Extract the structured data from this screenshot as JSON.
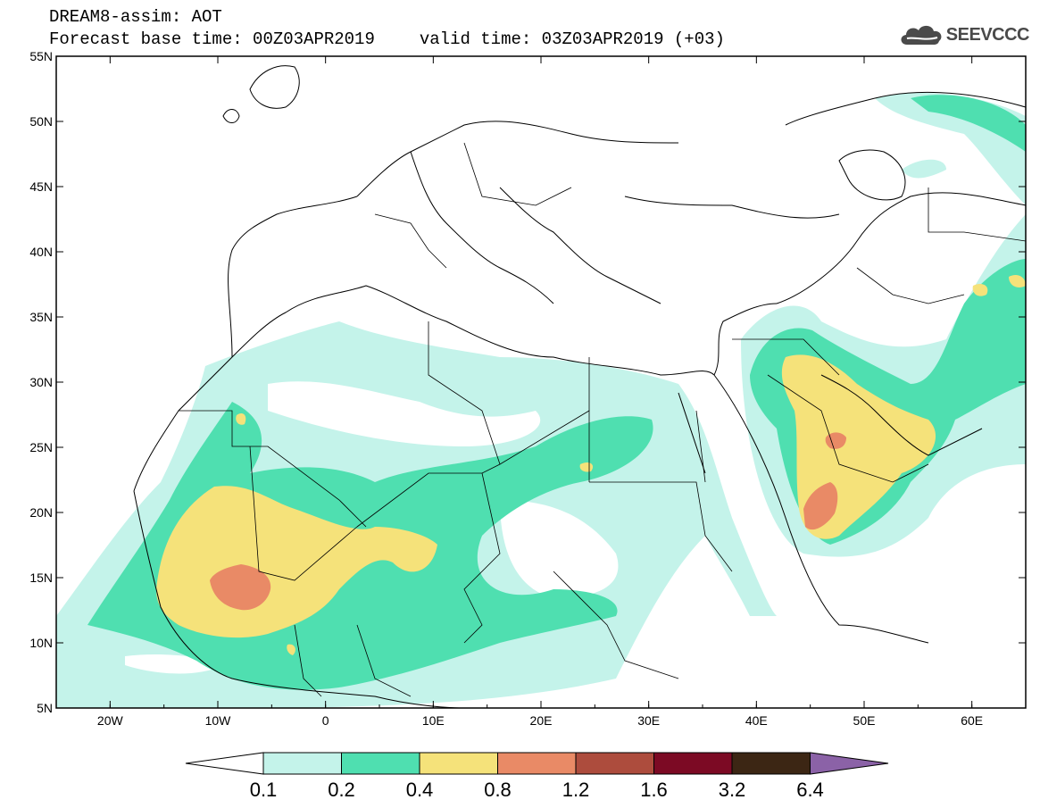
{
  "header": {
    "title": "DREAM8-assim: AOT",
    "base_time": "Forecast base time: 00Z03APR2019",
    "valid_time": "valid time: 03Z03APR2019 (+03)"
  },
  "logo": {
    "text": "SEEVCCC",
    "icon": "cloud-icon"
  },
  "map": {
    "lat_ticks": [
      "55N",
      "50N",
      "45N",
      "40N",
      "35N",
      "30N",
      "25N",
      "20N",
      "15N",
      "10N",
      "5N"
    ],
    "lon_ticks": [
      "20W",
      "10W",
      "0",
      "10E",
      "20E",
      "30E",
      "40E",
      "50E",
      "60E"
    ],
    "lat_range": [
      5,
      55
    ],
    "lon_range": [
      -25,
      65
    ]
  },
  "colorbar": {
    "colors": [
      "#c4f3ea",
      "#4fdfb0",
      "#f5e27a",
      "#e98a66",
      "#ad4c3d",
      "#7c0a24",
      "#3c2614",
      "#8b62a7"
    ],
    "labels": [
      "0.1",
      "0.2",
      "0.4",
      "0.8",
      "1.2",
      "1.6",
      "3.2",
      "6.4"
    ]
  }
}
